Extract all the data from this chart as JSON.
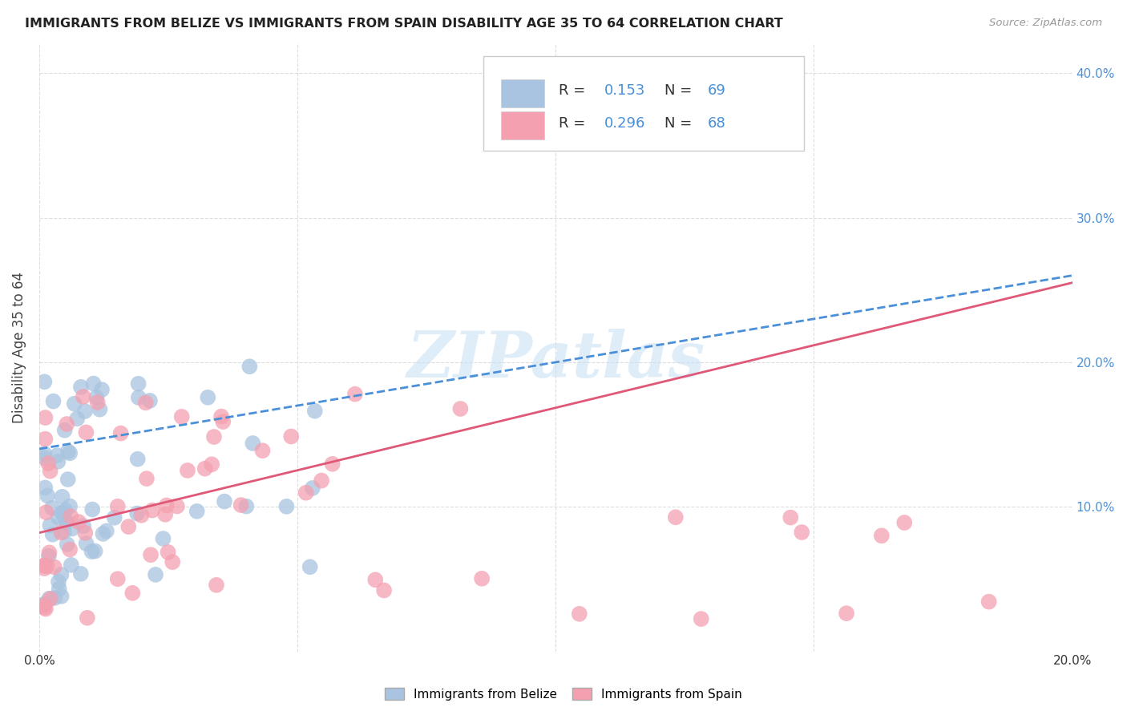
{
  "title": "IMMIGRANTS FROM BELIZE VS IMMIGRANTS FROM SPAIN DISABILITY AGE 35 TO 64 CORRELATION CHART",
  "source": "Source: ZipAtlas.com",
  "ylabel": "Disability Age 35 to 64",
  "xlim": [
    0.0,
    0.2
  ],
  "ylim": [
    0.0,
    0.42
  ],
  "belize_color": "#a8c4e0",
  "spain_color": "#f4a0b0",
  "belize_line_color": "#4a90d9",
  "spain_line_color": "#e05878",
  "belize_R": 0.153,
  "belize_N": 69,
  "spain_R": 0.296,
  "spain_N": 68,
  "watermark": "ZIPatlas",
  "background_color": "#ffffff",
  "grid_color": "#dddddd",
  "belize_line_y0": 0.14,
  "belize_line_y1": 0.26,
  "spain_line_y0": 0.082,
  "spain_line_y1": 0.255
}
